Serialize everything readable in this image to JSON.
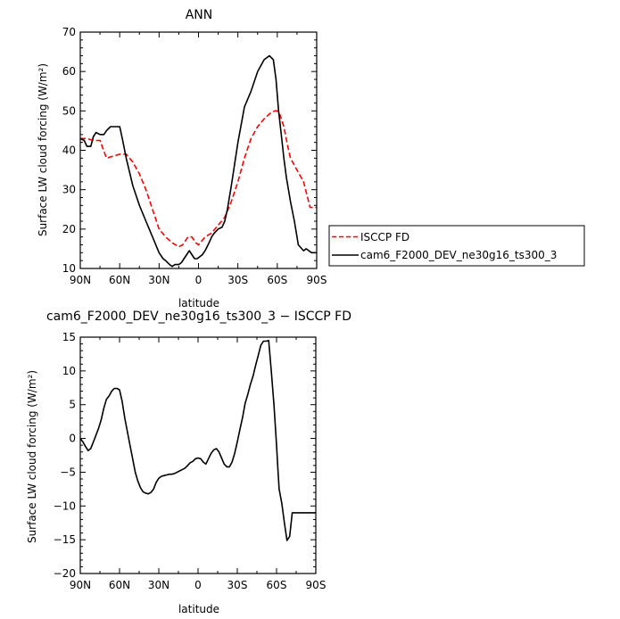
{
  "chart_data": [
    {
      "type": "line",
      "title": "ANN",
      "xlabel": "latitude",
      "ylabel": "Surface LW cloud forcing (W/m²)",
      "xlim": [
        -90,
        90
      ],
      "ylim": [
        10,
        70
      ],
      "x_ticks": [
        -90,
        -60,
        -30,
        0,
        30,
        60,
        90
      ],
      "x_tick_labels": [
        "90N",
        "60N",
        "30N",
        "0",
        "30S",
        "60S",
        "90S"
      ],
      "y_ticks": [
        10,
        20,
        30,
        40,
        50,
        60,
        70
      ],
      "y_tick_labels": [
        "10",
        "20",
        "30",
        "40",
        "50",
        "60",
        "70"
      ],
      "legend": "right",
      "series": [
        {
          "name": "ISCCP FD",
          "color": "#ff0000",
          "dash": "dashed",
          "x": [
            -90,
            -85,
            -80,
            -75,
            -70,
            -65,
            -60,
            -55,
            -50,
            -45,
            -40,
            -35,
            -30,
            -25,
            -20,
            -15,
            -12,
            -8,
            -5,
            -2,
            0,
            5,
            10,
            15,
            20,
            25,
            30,
            35,
            40,
            45,
            50,
            55,
            58,
            60,
            62,
            65,
            68,
            70,
            75,
            80,
            85,
            90
          ],
          "y": [
            43,
            43,
            42.5,
            42.5,
            38,
            38.5,
            39,
            39,
            37,
            34,
            30,
            25,
            20,
            18,
            16.5,
            15.5,
            16,
            18,
            18,
            16.5,
            16,
            18,
            19,
            21,
            23,
            27,
            32,
            38,
            43,
            46,
            48,
            49.5,
            50,
            50,
            49,
            46,
            41,
            38,
            35,
            32,
            25.5,
            25.5
          ]
        },
        {
          "name": "cam6_F2000_DEV_ne30g16_ts300_3",
          "color": "#000000",
          "dash": "solid",
          "x": [
            -90,
            -87,
            -85,
            -82,
            -80,
            -78,
            -75,
            -72,
            -70,
            -67,
            -64,
            -60,
            -58,
            -55,
            -50,
            -45,
            -40,
            -35,
            -30,
            -27,
            -25,
            -22,
            -20,
            -18,
            -15,
            -13,
            -11,
            -9,
            -7,
            -5,
            -3,
            -1,
            1,
            3,
            5,
            8,
            10,
            12,
            15,
            18,
            20,
            22,
            25,
            30,
            35,
            40,
            45,
            50,
            54,
            57,
            59,
            61,
            63,
            65,
            67,
            70,
            73,
            76,
            80,
            82,
            84,
            86,
            88,
            90
          ],
          "y": [
            43,
            42.5,
            41,
            41,
            43.5,
            44.5,
            44,
            44,
            45,
            46,
            46,
            46,
            43,
            38,
            31,
            26,
            22,
            18,
            14,
            12.5,
            12,
            11,
            10.5,
            11,
            11,
            11.5,
            12.5,
            13.5,
            14.5,
            13.5,
            12.5,
            12.5,
            13,
            13.5,
            14.5,
            16.5,
            18,
            19,
            20,
            20.5,
            22,
            25,
            31,
            42,
            51,
            55,
            60,
            63,
            64,
            63,
            58,
            50,
            44,
            38,
            33,
            27,
            22,
            16,
            14.5,
            15,
            14.5,
            14,
            14,
            14
          ]
        }
      ]
    },
    {
      "type": "line",
      "title": "cam6_F2000_DEV_ne30g16_ts300_3 − ISCCP FD",
      "xlabel": "latitude",
      "ylabel": "Surface LW cloud forcing (W/m²)",
      "xlim": [
        -90,
        90
      ],
      "ylim": [
        -20,
        15
      ],
      "x_ticks": [
        -90,
        -60,
        -30,
        0,
        30,
        60,
        90
      ],
      "x_tick_labels": [
        "90N",
        "60N",
        "30N",
        "0",
        "30S",
        "60S",
        "90S"
      ],
      "y_ticks": [
        -20,
        -15,
        -10,
        -5,
        0,
        5,
        10,
        15
      ],
      "y_tick_labels": [
        "−20",
        "−15",
        "−10",
        "−5",
        "0",
        "5",
        "10",
        "15"
      ],
      "series": [
        {
          "color": "#000000",
          "dash": "solid",
          "x": [
            -90,
            -88,
            -86,
            -84,
            -82,
            -80,
            -78,
            -76,
            -74,
            -72,
            -70,
            -68,
            -66,
            -64,
            -62,
            -60,
            -58,
            -56,
            -54,
            -52,
            -50,
            -48,
            -46,
            -44,
            -42,
            -40,
            -38,
            -36,
            -34,
            -32,
            -30,
            -28,
            -26,
            -24,
            -22,
            -20,
            -18,
            -16,
            -14,
            -12,
            -10,
            -8,
            -6,
            -4,
            -2,
            0,
            2,
            4,
            6,
            8,
            10,
            12,
            14,
            16,
            18,
            20,
            22,
            24,
            26,
            28,
            30,
            32,
            34,
            36,
            38,
            40,
            42,
            44,
            46,
            48,
            50,
            52,
            54,
            56,
            58,
            60,
            61,
            62,
            64,
            66,
            68,
            70,
            72,
            74,
            76,
            78,
            80,
            82,
            84,
            86,
            88,
            90
          ],
          "y": [
            0,
            -0.5,
            -1.2,
            -1.8,
            -1.5,
            -0.5,
            0.5,
            1.5,
            2.8,
            4.5,
            5.8,
            6.3,
            7.0,
            7.4,
            7.4,
            7.2,
            5.5,
            3,
            1,
            -1,
            -3,
            -5,
            -6.3,
            -7.3,
            -7.9,
            -8.1,
            -8.2,
            -8.0,
            -7.5,
            -6.5,
            -5.9,
            -5.6,
            -5.5,
            -5.4,
            -5.3,
            -5.3,
            -5.2,
            -5.0,
            -4.8,
            -4.6,
            -4.4,
            -4.0,
            -3.6,
            -3.4,
            -3.0,
            -2.9,
            -3.0,
            -3.5,
            -3.8,
            -3.0,
            -2.2,
            -1.7,
            -1.5,
            -2.0,
            -2.9,
            -3.8,
            -4.2,
            -4.2,
            -3.5,
            -2.2,
            -0.5,
            1.3,
            3.1,
            5.2,
            6.5,
            8.0,
            9.2,
            10.8,
            12.3,
            13.8,
            14.4,
            14.4,
            14.5,
            10.0,
            5.0,
            -1.0,
            -4.5,
            -7.5,
            -9.6,
            -12.5,
            -15.1,
            -14.5,
            -11.0,
            -11.0,
            -11.0,
            -11.0,
            -11.0,
            -11.0,
            -11.0,
            -11.0,
            -11.0,
            -11.0
          ]
        }
      ]
    }
  ]
}
